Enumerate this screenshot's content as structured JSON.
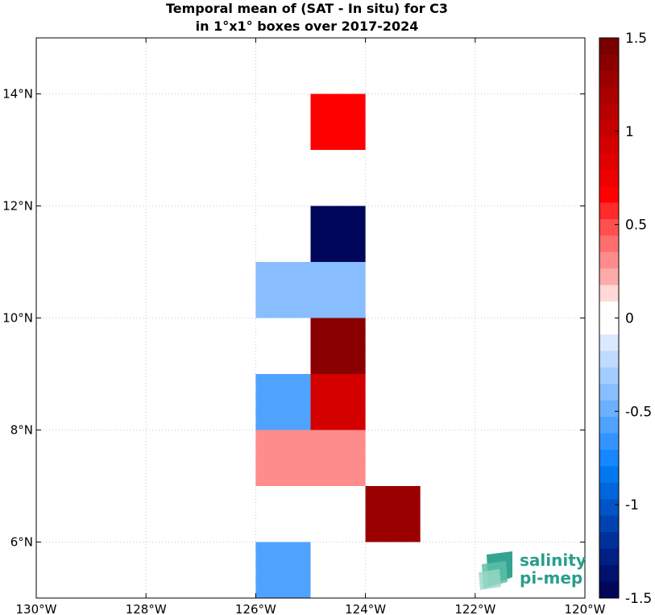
{
  "chart_data": {
    "type": "heatmap",
    "title_lines": [
      "Temporal mean of (SAT - In situ) for C3",
      "in 1°x1° boxes over 2017-2024"
    ],
    "xlim": [
      -130,
      -120
    ],
    "ylim": [
      5,
      15
    ],
    "grid": true,
    "x_ticks": [
      {
        "value": -130,
        "label": "130°W"
      },
      {
        "value": -128,
        "label": "128°W"
      },
      {
        "value": -126,
        "label": "126°W"
      },
      {
        "value": -124,
        "label": "124°W"
      },
      {
        "value": -122,
        "label": "122°W"
      },
      {
        "value": -120,
        "label": "120°W"
      }
    ],
    "y_ticks": [
      {
        "value": 6,
        "label": "6°N"
      },
      {
        "value": 8,
        "label": "8°N"
      },
      {
        "value": 10,
        "label": "10°N"
      },
      {
        "value": 12,
        "label": "12°N"
      },
      {
        "value": 14,
        "label": "14°N"
      }
    ],
    "cells": [
      {
        "lon": -125,
        "lat": 13,
        "value": 0.7
      },
      {
        "lon": -125,
        "lat": 11,
        "value": -1.5
      },
      {
        "lon": -126,
        "lat": 10,
        "value": -0.4
      },
      {
        "lon": -125,
        "lat": 10,
        "value": -0.4
      },
      {
        "lon": -125,
        "lat": 9,
        "value": 1.4
      },
      {
        "lon": -126,
        "lat": 8,
        "value": -0.6
      },
      {
        "lon": -125,
        "lat": 8,
        "value": 0.95
      },
      {
        "lon": -126,
        "lat": 7,
        "value": 0.35
      },
      {
        "lon": -125,
        "lat": 7,
        "value": 0.35
      },
      {
        "lon": -124,
        "lat": 6,
        "value": 1.25
      },
      {
        "lon": -126,
        "lat": 5,
        "value": -0.6
      }
    ],
    "colorbar": {
      "range": [
        -1.5,
        1.5
      ],
      "ticks": [
        {
          "value": 1.5,
          "label": "1.5"
        },
        {
          "value": 1,
          "label": "1"
        },
        {
          "value": 0.5,
          "label": "0.5"
        },
        {
          "value": 0,
          "label": "0"
        },
        {
          "value": -0.5,
          "label": "-0.5"
        },
        {
          "value": -1,
          "label": "-1"
        },
        {
          "value": -1.5,
          "label": "-1.5"
        }
      ],
      "colors_top_to_bottom": [
        "#7a0000",
        "#8a0000",
        "#9a0000",
        "#aa0000",
        "#b80000",
        "#c60000",
        "#d40000",
        "#e00000",
        "#ee0000",
        "#ff0000",
        "#ff2a2a",
        "#ff5050",
        "#ff6e6e",
        "#ff8c8c",
        "#ffaaaa",
        "#ffd8d8",
        "#ffffff",
        "#ffffff",
        "#dbe9ff",
        "#c0dbff",
        "#a4cdff",
        "#88beff",
        "#6cb0ff",
        "#50a2ff",
        "#3494ff",
        "#1886ff",
        "#0078f0",
        "#0066dc",
        "#0054c6",
        "#0042b0",
        "#00309a",
        "#002084",
        "#00126e",
        "#00065a"
      ]
    }
  },
  "logo": {
    "line1": "salinity",
    "line2": "pi-mep",
    "color": "#2a9e8c"
  }
}
